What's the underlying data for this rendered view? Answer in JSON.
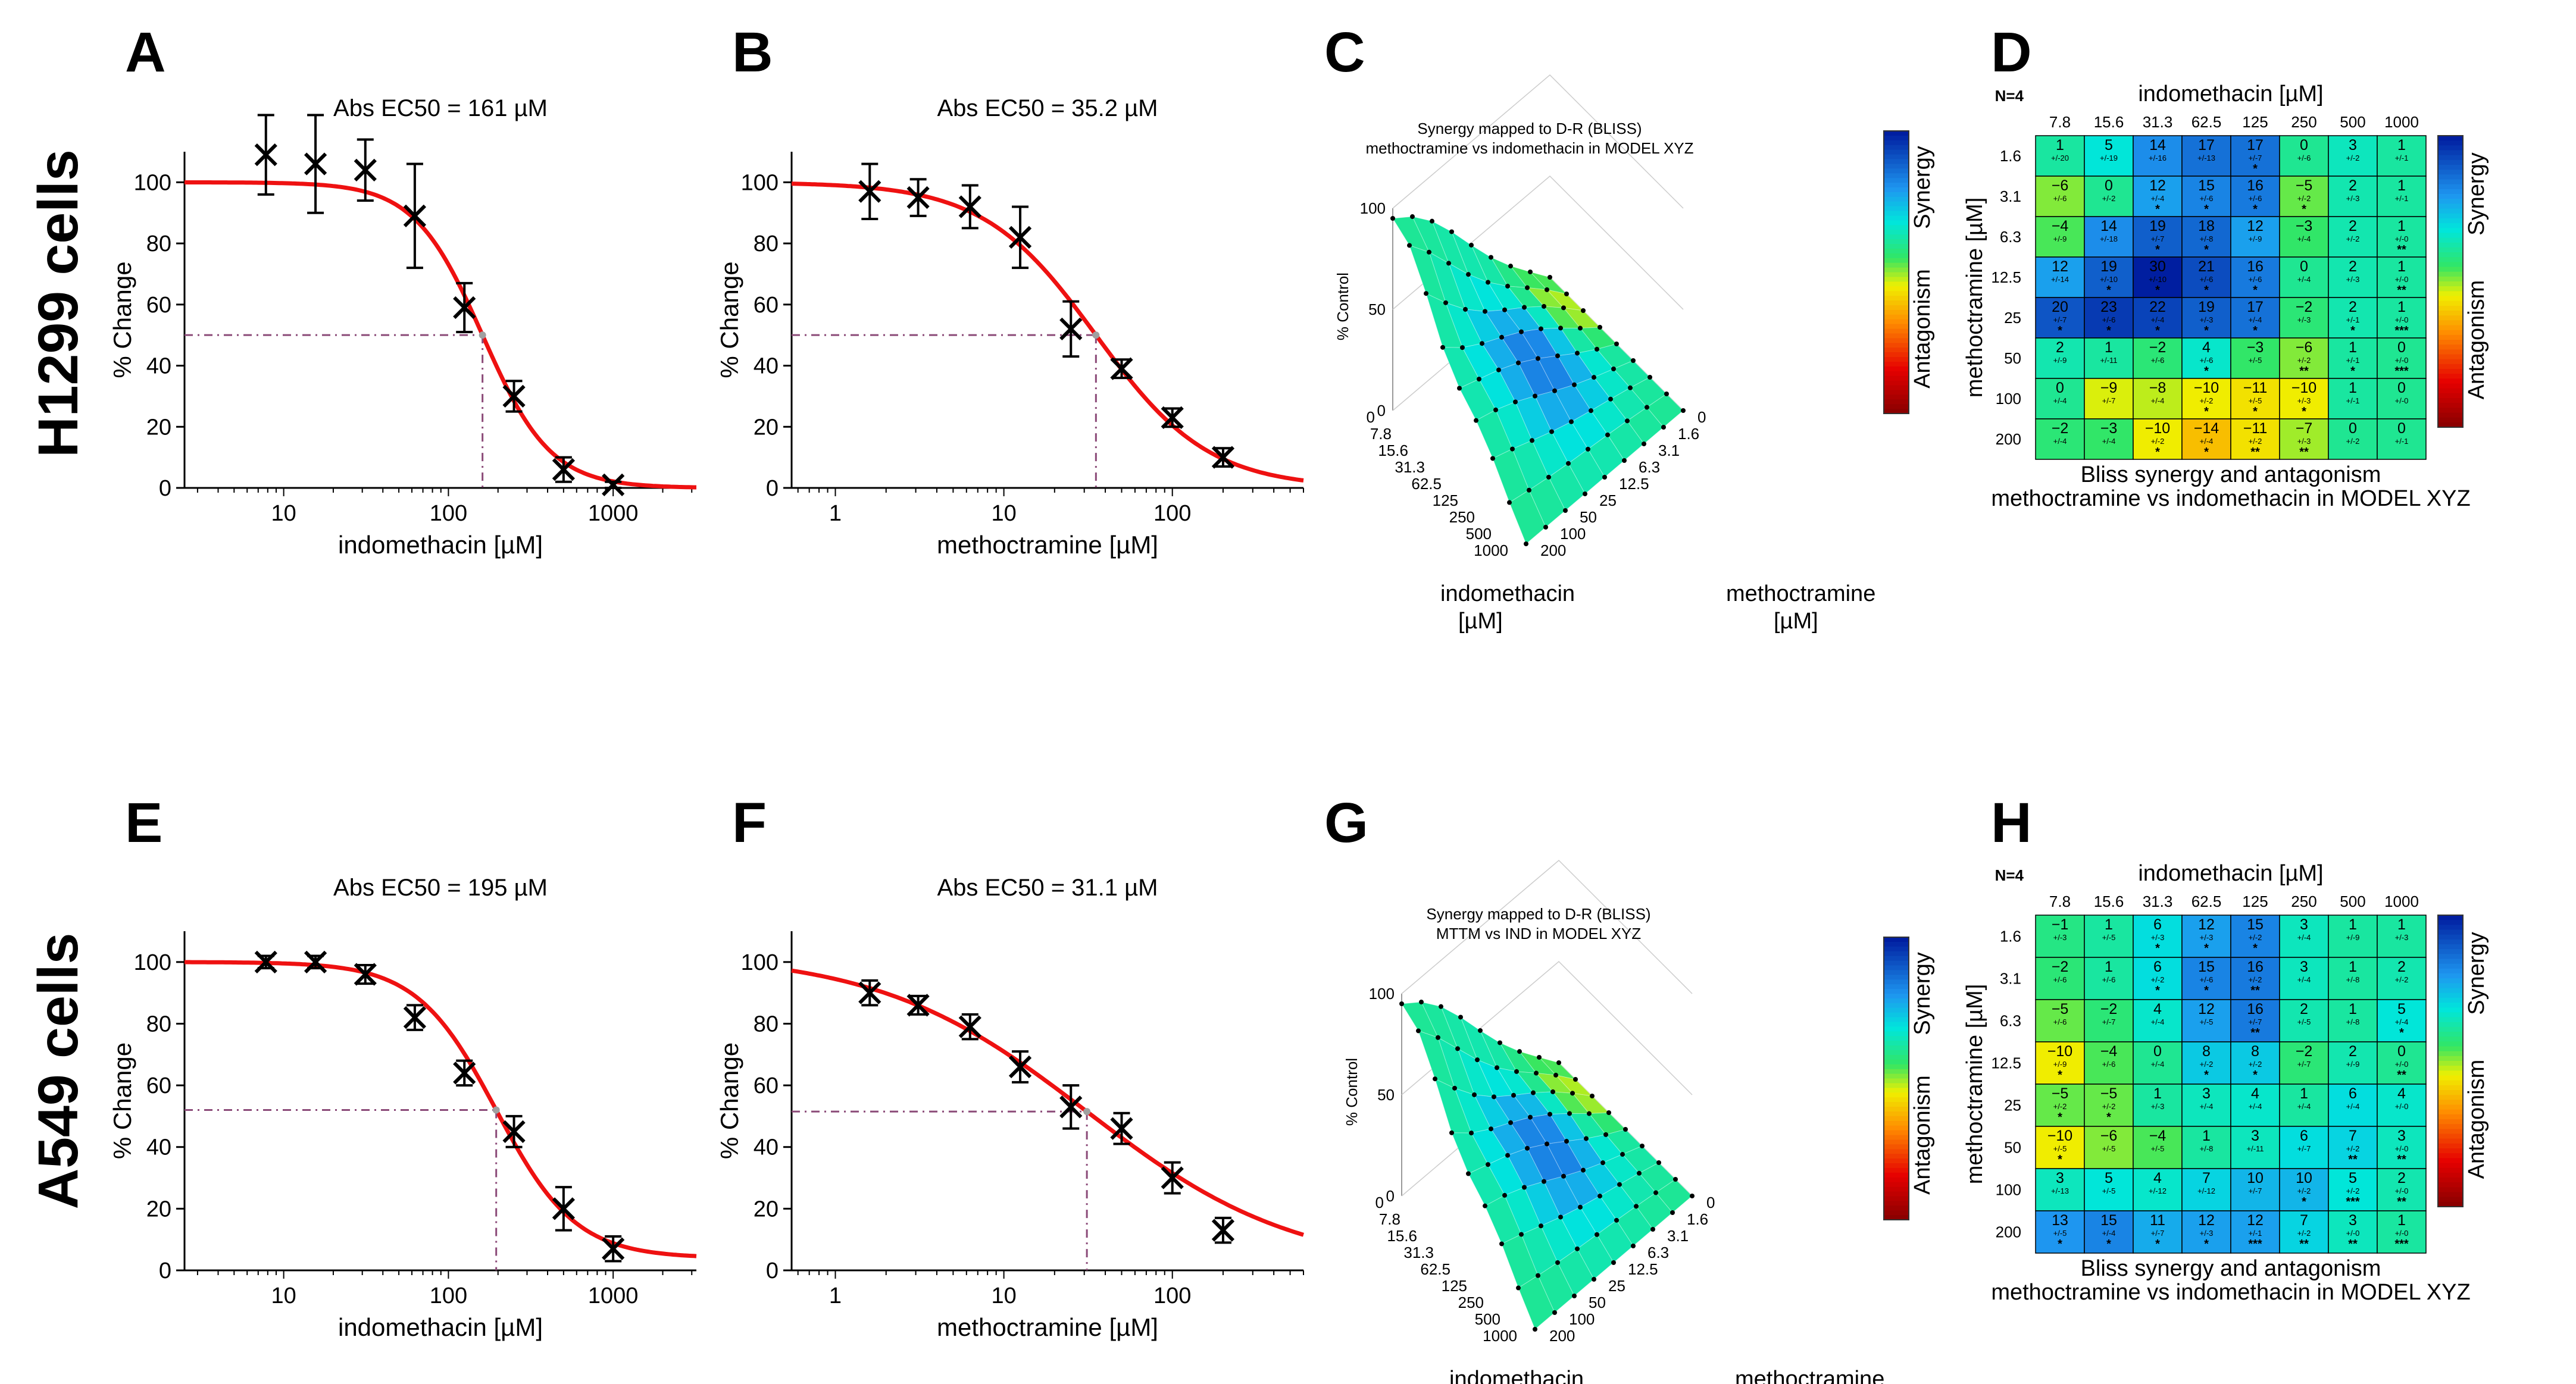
{
  "row_labels": {
    "top": "H1299 cells",
    "bottom": "A549 cells"
  },
  "colors": {
    "curve": "#ee1111",
    "ec50_line": "#8b4a78",
    "marker": "#000000"
  },
  "chart_data": [
    {
      "panel": "A",
      "type": "line",
      "title": "Abs EC50 = 161 µM",
      "xlabel": "indomethacin [µM]",
      "ylabel": "% Change",
      "xscale": "log",
      "xlim": [
        2.5,
        3200
      ],
      "ylim": [
        0,
        110
      ],
      "xticks": [
        10,
        100,
        1000
      ],
      "yticks": [
        0,
        20,
        40,
        60,
        80,
        100
      ],
      "ec50": 161,
      "fit": {
        "top": 100,
        "bottom": 0,
        "hill": 2.1
      },
      "points": [
        {
          "x": 7.8,
          "y": 109,
          "err": 13
        },
        {
          "x": 15.6,
          "y": 106,
          "err": 16
        },
        {
          "x": 31.3,
          "y": 104,
          "err": 10
        },
        {
          "x": 62.5,
          "y": 89,
          "err": 17
        },
        {
          "x": 125,
          "y": 59,
          "err": 8
        },
        {
          "x": 250,
          "y": 30,
          "err": 5
        },
        {
          "x": 500,
          "y": 6,
          "err": 4
        },
        {
          "x": 1000,
          "y": 1,
          "err": 1
        }
      ]
    },
    {
      "panel": "B",
      "type": "line",
      "title": "Abs EC50 = 35.2 µM",
      "xlabel": "methoctramine [µM]",
      "ylabel": "% Change",
      "xscale": "log",
      "xlim": [
        0.55,
        600
      ],
      "ylim": [
        0,
        110
      ],
      "xticks": [
        1,
        10,
        100
      ],
      "yticks": [
        0,
        20,
        40,
        60,
        80,
        100
      ],
      "ec50": 35.2,
      "fit": {
        "top": 100,
        "bottom": 0,
        "hill": 1.3
      },
      "points": [
        {
          "x": 1.6,
          "y": 97,
          "err": 9
        },
        {
          "x": 3.1,
          "y": 95,
          "err": 6
        },
        {
          "x": 6.3,
          "y": 92,
          "err": 7
        },
        {
          "x": 12.5,
          "y": 82,
          "err": 10
        },
        {
          "x": 25,
          "y": 52,
          "err": 9
        },
        {
          "x": 50,
          "y": 39,
          "err": 3
        },
        {
          "x": 100,
          "y": 23,
          "err": 3
        },
        {
          "x": 200,
          "y": 10,
          "err": 3
        }
      ]
    },
    {
      "panel": "C",
      "type": "heatmap",
      "title": "Synergy mapped to D-R (BLISS)",
      "subtitle": "methoctramine vs indomethacin in MODEL XYZ",
      "zlabel": "% Control",
      "zticks": [
        0,
        50,
        100
      ],
      "colorbar": {
        "top": "Synergy",
        "bottom": "Antagonism"
      },
      "x_axis_label": "indomethacin [µM]",
      "y_axis_label": "methoctramine [µM]",
      "x_ticks": [
        "0",
        "7.8",
        "15.6",
        "31.3",
        "62.5",
        "125",
        "250",
        "500",
        "1000"
      ],
      "y_ticks": [
        "200",
        "100",
        "50",
        "25",
        "12.5",
        "6.3",
        "3.1",
        "1.6",
        "0"
      ]
    },
    {
      "panel": "D",
      "type": "heatmap",
      "n_label": "N=4",
      "x_title": "indomethacin [µM]",
      "y_title": "methoctramine [µM]",
      "caption": [
        "Bliss synergy and antagonism",
        "methoctramine vs indomethacin in MODEL XYZ"
      ],
      "colorbar": {
        "top": "Synergy",
        "bottom": "Antagonism"
      },
      "columns": [
        "7.8",
        "15.6",
        "31.3",
        "62.5",
        "125",
        "250",
        "500",
        "1000"
      ],
      "rows": [
        "1.6",
        "3.1",
        "6.3",
        "12.5",
        "25",
        "50",
        "100",
        "200"
      ],
      "values": [
        [
          "1",
          "5",
          "14",
          "17",
          "17",
          "0",
          "3",
          "1"
        ],
        [
          "−6",
          "0",
          "12",
          "15",
          "16",
          "−5",
          "2",
          "1"
        ],
        [
          "−4",
          "14",
          "19",
          "18",
          "12",
          "−3",
          "2",
          "1"
        ],
        [
          "12",
          "19",
          "30",
          "21",
          "16",
          "0",
          "2",
          "1"
        ],
        [
          "20",
          "23",
          "22",
          "19",
          "17",
          "−2",
          "2",
          "1"
        ],
        [
          "2",
          "1",
          "−2",
          "4",
          "−3",
          "−6",
          "1",
          "0"
        ],
        [
          "0",
          "−9",
          "−8",
          "−10",
          "−11",
          "−10",
          "1",
          "0"
        ],
        [
          "−2",
          "−3",
          "−10",
          "−14",
          "−11",
          "−7",
          "0",
          "0"
        ]
      ],
      "sd": [
        [
          "+/-20",
          "+/-19",
          "+/-16",
          "+/-13",
          "+/-7",
          "+/-6",
          "+/-2",
          "+/-1"
        ],
        [
          "+/-6",
          "+/-2",
          "+/-4",
          "+/-6",
          "+/-6",
          "+/-2",
          "+/-3",
          "+/-1"
        ],
        [
          "+/-9",
          "+/-18",
          "+/-7",
          "+/-8",
          "+/-9",
          "+/-4",
          "+/-2",
          "+/-0"
        ],
        [
          "+/-14",
          "+/-10",
          "+/-10",
          "+/-6",
          "+/-6",
          "+/-4",
          "+/-3",
          "+/-0"
        ],
        [
          "+/-7",
          "+/-6",
          "+/-4",
          "+/-3",
          "+/-4",
          "+/-3",
          "+/-1",
          "+/-0"
        ],
        [
          "+/-9",
          "+/-11",
          "+/-6",
          "+/-6",
          "+/-5",
          "+/-2",
          "+/-1",
          "+/-0"
        ],
        [
          "+/-4",
          "+/-7",
          "+/-4",
          "+/-2",
          "+/-5",
          "+/-3",
          "+/-1",
          "+/-0"
        ],
        [
          "+/-4",
          "+/-4",
          "+/-2",
          "+/-4",
          "+/-2",
          "+/-3",
          "+/-2",
          "+/-1"
        ]
      ],
      "stars": [
        [
          "",
          "",
          "",
          "",
          "*",
          "",
          "",
          ""
        ],
        [
          "",
          "",
          "*",
          "*",
          "*",
          "*",
          "",
          ""
        ],
        [
          "",
          "",
          "*",
          "*",
          "",
          "",
          "",
          "**"
        ],
        [
          "",
          "*",
          "*",
          "*",
          "*",
          "",
          "",
          "**"
        ],
        [
          "*",
          "*",
          "*",
          "*",
          "*",
          "",
          "*",
          "***"
        ],
        [
          "",
          "",
          "",
          "*",
          "",
          "**",
          "*",
          "***"
        ],
        [
          "",
          "",
          "",
          "*",
          "*",
          "*",
          "",
          ""
        ],
        [
          "",
          "",
          "*",
          "*",
          "**",
          "**",
          "",
          ""
        ]
      ]
    },
    {
      "panel": "E",
      "type": "line",
      "title": "Abs EC50 = 195 µM",
      "xlabel": "indomethacin [µM]",
      "ylabel": "% Change",
      "xscale": "log",
      "xlim": [
        2.5,
        3200
      ],
      "ylim": [
        0,
        110
      ],
      "xticks": [
        10,
        100,
        1000
      ],
      "yticks": [
        0,
        20,
        40,
        60,
        80,
        100
      ],
      "ec50": 195,
      "fit": {
        "top": 100,
        "bottom": 4,
        "hill": 1.8
      },
      "points": [
        {
          "x": 7.8,
          "y": 100,
          "err": 2
        },
        {
          "x": 15.6,
          "y": 100,
          "err": 2
        },
        {
          "x": 31.3,
          "y": 96,
          "err": 3
        },
        {
          "x": 62.5,
          "y": 82,
          "err": 4
        },
        {
          "x": 125,
          "y": 64,
          "err": 4
        },
        {
          "x": 250,
          "y": 45,
          "err": 5
        },
        {
          "x": 500,
          "y": 20,
          "err": 7
        },
        {
          "x": 1000,
          "y": 7,
          "err": 4
        }
      ]
    },
    {
      "panel": "F",
      "type": "line",
      "title": "Abs EC50 = 31.1 µM",
      "xlabel": "methoctramine [µM]",
      "ylabel": "% Change",
      "xscale": "log",
      "xlim": [
        0.55,
        600
      ],
      "ylim": [
        0,
        110
      ],
      "xticks": [
        1,
        10,
        100
      ],
      "yticks": [
        0,
        20,
        40,
        60,
        80,
        100
      ],
      "ec50": 31.1,
      "fit": {
        "top": 103,
        "bottom": 0,
        "hill": 0.7
      },
      "points": [
        {
          "x": 1.6,
          "y": 90,
          "err": 4
        },
        {
          "x": 3.1,
          "y": 86,
          "err": 3
        },
        {
          "x": 6.3,
          "y": 79,
          "err": 4
        },
        {
          "x": 12.5,
          "y": 66,
          "err": 5
        },
        {
          "x": 25,
          "y": 53,
          "err": 7
        },
        {
          "x": 50,
          "y": 46,
          "err": 5
        },
        {
          "x": 100,
          "y": 30,
          "err": 5
        },
        {
          "x": 200,
          "y": 13,
          "err": 4
        }
      ]
    },
    {
      "panel": "G",
      "type": "heatmap",
      "title": "Synergy mapped to D-R (BLISS)",
      "subtitle": "MTTM vs IND in MODEL XYZ",
      "zlabel": "% Control",
      "zticks": [
        0,
        50,
        100
      ],
      "colorbar": {
        "top": "Synergy",
        "bottom": "Antagonism"
      },
      "x_axis_label": "indomethacin [µM]",
      "y_axis_label": "methoctramine [µM]",
      "x_ticks": [
        "0",
        "7.8",
        "15.6",
        "31.3",
        "62.5",
        "125",
        "250",
        "500",
        "1000"
      ],
      "y_ticks": [
        "200",
        "100",
        "50",
        "25",
        "12.5",
        "6.3",
        "3.1",
        "1.6",
        "0"
      ]
    },
    {
      "panel": "H",
      "type": "heatmap",
      "n_label": "N=4",
      "x_title": "indomethacin [µM]",
      "y_title": "methoctramine [µM]",
      "caption": [
        "Bliss synergy and antagonism",
        "methoctramine vs indomethacin in MODEL XYZ"
      ],
      "colorbar": {
        "top": "Synergy",
        "bottom": "Antagonism"
      },
      "columns": [
        "7.8",
        "15.6",
        "31.3",
        "62.5",
        "125",
        "250",
        "500",
        "1000"
      ],
      "rows": [
        "1.6",
        "3.1",
        "6.3",
        "12.5",
        "25",
        "50",
        "100",
        "200"
      ],
      "values": [
        [
          "−1",
          "1",
          "6",
          "12",
          "15",
          "3",
          "1",
          "1"
        ],
        [
          "−2",
          "1",
          "6",
          "15",
          "16",
          "3",
          "1",
          "2"
        ],
        [
          "−5",
          "−2",
          "4",
          "12",
          "16",
          "2",
          "1",
          "5"
        ],
        [
          "−10",
          "−4",
          "0",
          "8",
          "8",
          "−2",
          "2",
          "0"
        ],
        [
          "−5",
          "−5",
          "1",
          "3",
          "4",
          "1",
          "6",
          "4"
        ],
        [
          "−10",
          "−6",
          "−4",
          "1",
          "3",
          "6",
          "7",
          "3"
        ],
        [
          "3",
          "5",
          "4",
          "7",
          "10",
          "10",
          "5",
          "2"
        ],
        [
          "13",
          "15",
          "11",
          "12",
          "12",
          "7",
          "3",
          "1"
        ]
      ],
      "sd": [
        [
          "+/-3",
          "+/-5",
          "+/-3",
          "+/-3",
          "+/-2",
          "+/-4",
          "+/-9",
          "+/-3"
        ],
        [
          "+/-6",
          "+/-6",
          "+/-2",
          "+/-6",
          "+/-2",
          "+/-4",
          "+/-8",
          "+/-2"
        ],
        [
          "+/-6",
          "+/-7",
          "+/-4",
          "+/-5",
          "+/-7",
          "+/-5",
          "+/-8",
          "+/-4"
        ],
        [
          "+/-9",
          "+/-6",
          "+/-4",
          "+/-2",
          "+/-2",
          "+/-7",
          "+/-9",
          "+/-0"
        ],
        [
          "+/-2",
          "+/-2",
          "+/-3",
          "+/-4",
          "+/-4",
          "+/-4",
          "+/-4",
          "+/-0"
        ],
        [
          "+/-5",
          "+/-5",
          "+/-5",
          "+/-8",
          "+/-11",
          "+/-7",
          "+/-2",
          "+/-0"
        ],
        [
          "+/-13",
          "+/-5",
          "+/-12",
          "+/-12",
          "+/-7",
          "+/-2",
          "+/-2",
          "+/-0"
        ],
        [
          "+/-5",
          "+/-4",
          "+/-7",
          "+/-3",
          "+/-1",
          "+/-2",
          "+/-0",
          "+/-0"
        ]
      ],
      "stars": [
        [
          "",
          "",
          "*",
          "*",
          "*",
          "",
          "",
          ""
        ],
        [
          "",
          "",
          "*",
          "*",
          "**",
          "",
          "",
          ""
        ],
        [
          "",
          "",
          "",
          "",
          "**",
          "",
          "",
          "*"
        ],
        [
          "*",
          "",
          "",
          "*",
          "*",
          "",
          "",
          "**"
        ],
        [
          "*",
          "*",
          "",
          "",
          "",
          "",
          "",
          ""
        ],
        [
          "*",
          "",
          "",
          "",
          "",
          "",
          "**",
          "**"
        ],
        [
          "",
          "",
          "",
          "",
          "",
          "*",
          "***",
          "**"
        ],
        [
          "*",
          "*",
          "*",
          "*",
          "***",
          "**",
          "**",
          "***"
        ]
      ]
    }
  ]
}
